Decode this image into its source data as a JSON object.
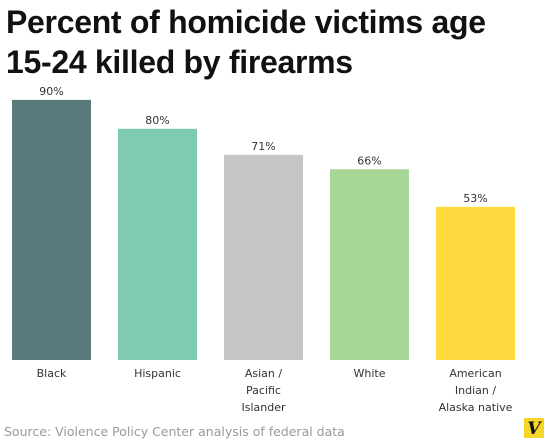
{
  "chart_data": {
    "type": "bar",
    "title_lines": [
      "Percent of homicide victims age",
      "15-24 killed by firearms"
    ],
    "categories": [
      [
        "Black"
      ],
      [
        "Hispanic"
      ],
      [
        "Asian /",
        "Pacific",
        "Islander"
      ],
      [
        "White"
      ],
      [
        "American",
        "Indian /",
        "Alaska native"
      ]
    ],
    "values": [
      90,
      80,
      71,
      66,
      53
    ],
    "value_labels": [
      "90%",
      "80%",
      "71%",
      "66%",
      "53%"
    ],
    "colors": [
      "#5a7b7c",
      "#7ecbb2",
      "#c4c5c7",
      "#a8d696",
      "#ffdb3f"
    ],
    "ylim": [
      0,
      100
    ],
    "grid": false,
    "legend": "none"
  },
  "source": "Source: Violence Policy Center analysis of federal data",
  "logo": {
    "icon": "vox-v-logo-icon",
    "text": "V",
    "color": "#f7d62a"
  }
}
